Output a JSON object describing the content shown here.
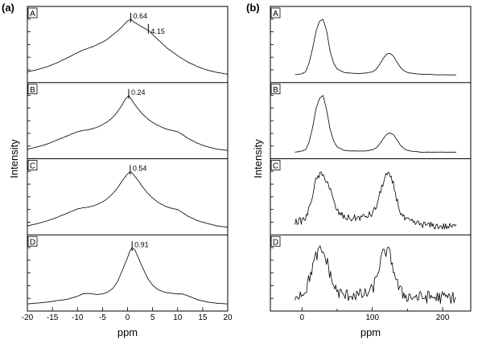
{
  "figure_labels": {
    "left": "(a)",
    "right": "(b)"
  },
  "chart_data": [
    {
      "type": "line",
      "xlabel": "ppm",
      "ylabel": "Intensity",
      "xlim": [
        -20,
        20
      ],
      "xticks": [
        "-20",
        "-15",
        "-10",
        "-5",
        "0",
        "5",
        "10",
        "15",
        "20"
      ],
      "panels": [
        {
          "label": "A",
          "annotations": [
            {
              "text": "0.64",
              "x": 0.64
            },
            {
              "text": "4.15",
              "x": 4.15
            }
          ],
          "x": [
            -20,
            -18,
            -16,
            -14,
            -12,
            -10,
            -9,
            -8,
            -7,
            -6,
            -5,
            -4,
            -3,
            -2,
            -1,
            -0.5,
            0,
            0.64,
            1.5,
            2.5,
            3.5,
            4.15,
            5,
            6,
            7,
            8,
            9,
            10,
            11,
            12,
            14,
            16,
            18,
            20
          ],
          "y": [
            0.1,
            0.14,
            0.19,
            0.26,
            0.34,
            0.43,
            0.47,
            0.5,
            0.53,
            0.57,
            0.61,
            0.66,
            0.73,
            0.8,
            0.88,
            0.93,
            0.97,
            1.0,
            0.94,
            0.89,
            0.84,
            0.81,
            0.74,
            0.66,
            0.58,
            0.5,
            0.44,
            0.38,
            0.32,
            0.27,
            0.19,
            0.13,
            0.09,
            0.06
          ]
        },
        {
          "label": "B",
          "annotations": [
            {
              "text": "0.24",
              "x": 0.24
            }
          ],
          "x": [
            -20,
            -18,
            -16,
            -14,
            -12,
            -10,
            -9,
            -8,
            -7,
            -6,
            -5,
            -4,
            -3,
            -2,
            -1,
            -0.5,
            0.24,
            1,
            2,
            3,
            4,
            5,
            6,
            7,
            8,
            9,
            10,
            11,
            12,
            14,
            16,
            18,
            20
          ],
          "y": [
            0.08,
            0.12,
            0.17,
            0.24,
            0.31,
            0.38,
            0.4,
            0.41,
            0.43,
            0.46,
            0.5,
            0.55,
            0.62,
            0.72,
            0.85,
            0.93,
            1.0,
            0.9,
            0.78,
            0.68,
            0.6,
            0.54,
            0.49,
            0.45,
            0.42,
            0.4,
            0.38,
            0.33,
            0.27,
            0.18,
            0.12,
            0.08,
            0.06
          ]
        },
        {
          "label": "C",
          "annotations": [
            {
              "text": "0.54",
              "x": 0.54
            }
          ],
          "x": [
            -20,
            -18,
            -16,
            -14,
            -12,
            -10,
            -9,
            -8,
            -7,
            -6,
            -5,
            -4,
            -3,
            -2,
            -1,
            0,
            0.54,
            1,
            2,
            3,
            4,
            5,
            6,
            7,
            8,
            9,
            10,
            11,
            12,
            14,
            16,
            18,
            20
          ],
          "y": [
            0.07,
            0.11,
            0.16,
            0.22,
            0.29,
            0.36,
            0.38,
            0.39,
            0.41,
            0.44,
            0.48,
            0.54,
            0.62,
            0.72,
            0.85,
            0.96,
            1.0,
            0.97,
            0.86,
            0.74,
            0.63,
            0.55,
            0.48,
            0.43,
            0.39,
            0.37,
            0.35,
            0.3,
            0.24,
            0.16,
            0.11,
            0.07,
            0.05
          ]
        },
        {
          "label": "D",
          "annotations": [
            {
              "text": "0.91",
              "x": 0.91
            }
          ],
          "x": [
            -20,
            -16,
            -12,
            -10,
            -9,
            -8,
            -7,
            -6,
            -5,
            -4,
            -3,
            -2,
            -1,
            0,
            0.5,
            0.91,
            1.5,
            2,
            3,
            4,
            5,
            6,
            7,
            8,
            9,
            10,
            11,
            12,
            14,
            16,
            18,
            20
          ],
          "y": [
            0.04,
            0.07,
            0.12,
            0.17,
            0.21,
            0.22,
            0.21,
            0.2,
            0.21,
            0.24,
            0.3,
            0.42,
            0.62,
            0.83,
            0.95,
            1.0,
            0.96,
            0.86,
            0.66,
            0.48,
            0.36,
            0.29,
            0.25,
            0.23,
            0.22,
            0.21,
            0.21,
            0.18,
            0.11,
            0.07,
            0.05,
            0.04
          ]
        }
      ]
    },
    {
      "type": "line",
      "xlabel": "ppm",
      "ylabel": "Intensity",
      "xlim": [
        -45,
        240
      ],
      "xticks": [
        "0",
        "100",
        "200"
      ],
      "panels": [
        {
          "label": "A",
          "x": [
            -10,
            0,
            5,
            10,
            15,
            20,
            25,
            30,
            35,
            40,
            45,
            50,
            60,
            70,
            80,
            90,
            100,
            105,
            110,
            115,
            120,
            125,
            130,
            135,
            140,
            145,
            150,
            160,
            170,
            180,
            190,
            200,
            210,
            220
          ],
          "y": [
            0.05,
            0.07,
            0.1,
            0.25,
            0.5,
            0.8,
            0.97,
            1.0,
            0.8,
            0.45,
            0.25,
            0.15,
            0.09,
            0.08,
            0.07,
            0.08,
            0.1,
            0.14,
            0.22,
            0.32,
            0.4,
            0.42,
            0.37,
            0.27,
            0.18,
            0.12,
            0.09,
            0.07,
            0.06,
            0.06,
            0.05,
            0.05,
            0.05,
            0.05
          ]
        },
        {
          "label": "B",
          "x": [
            -10,
            0,
            5,
            10,
            15,
            20,
            25,
            30,
            35,
            40,
            45,
            50,
            60,
            70,
            80,
            90,
            100,
            105,
            110,
            115,
            120,
            125,
            130,
            135,
            140,
            145,
            150,
            160,
            170,
            180,
            190,
            200,
            210,
            220
          ],
          "y": [
            0.03,
            0.05,
            0.07,
            0.2,
            0.45,
            0.78,
            0.95,
            1.0,
            0.75,
            0.42,
            0.22,
            0.12,
            0.06,
            0.05,
            0.05,
            0.05,
            0.07,
            0.1,
            0.16,
            0.25,
            0.33,
            0.36,
            0.33,
            0.24,
            0.15,
            0.09,
            0.06,
            0.04,
            0.03,
            0.03,
            0.03,
            0.03,
            0.03,
            0.03
          ]
        },
        {
          "label": "C",
          "x": [
            -10,
            0,
            5,
            10,
            15,
            20,
            25,
            30,
            35,
            40,
            45,
            50,
            60,
            70,
            80,
            90,
            100,
            105,
            110,
            115,
            120,
            125,
            130,
            135,
            140,
            145,
            150,
            160,
            170,
            180,
            190,
            200,
            210,
            220
          ],
          "y": [
            0.14,
            0.16,
            0.2,
            0.35,
            0.62,
            0.85,
            0.95,
            0.92,
            0.86,
            0.7,
            0.48,
            0.32,
            0.22,
            0.2,
            0.21,
            0.23,
            0.28,
            0.38,
            0.58,
            0.8,
            0.95,
            0.92,
            0.78,
            0.52,
            0.3,
            0.2,
            0.16,
            0.12,
            0.1,
            0.08,
            0.07,
            0.06,
            0.06,
            0.06
          ],
          "noise": 0.06
        },
        {
          "label": "D",
          "x": [
            -10,
            0,
            5,
            10,
            15,
            20,
            25,
            30,
            35,
            40,
            45,
            50,
            60,
            70,
            80,
            90,
            100,
            105,
            110,
            115,
            120,
            125,
            130,
            135,
            140,
            145,
            150,
            160,
            170,
            180,
            190,
            200,
            210,
            220
          ],
          "y": [
            0.2,
            0.22,
            0.28,
            0.45,
            0.68,
            0.85,
            0.95,
            0.92,
            0.78,
            0.55,
            0.35,
            0.25,
            0.18,
            0.2,
            0.19,
            0.2,
            0.28,
            0.45,
            0.7,
            0.88,
            0.95,
            0.88,
            0.65,
            0.4,
            0.25,
            0.2,
            0.17,
            0.16,
            0.15,
            0.16,
            0.15,
            0.15,
            0.15,
            0.15
          ],
          "noise": 0.11
        }
      ]
    }
  ]
}
